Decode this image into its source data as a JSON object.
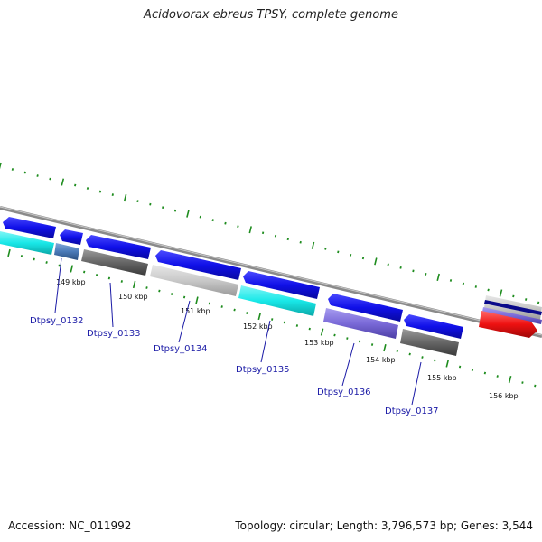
{
  "title": "Acidovorax ebreus TPSY, complete genome",
  "footer": {
    "accession": "Accession: NC_011992",
    "summary": "Topology: circular; Length: 3,796,573 bp; Genes: 3,544"
  },
  "scale": {
    "tick_labels": [
      "149 kbp",
      "150 kbp",
      "151 kbp",
      "152 kbp",
      "153 kbp",
      "154 kbp",
      "155 kbp",
      "156 kbp"
    ]
  },
  "genes": {
    "labels": [
      "Dtpsy_0132",
      "Dtpsy_0133",
      "Dtpsy_0134",
      "Dtpsy_0135",
      "Dtpsy_0136",
      "Dtpsy_0137"
    ]
  },
  "colors": {
    "cds": "#1010e8",
    "backbone": "#8a8a8a",
    "tick": "#1e8c1e",
    "label": "#1a1aa6",
    "cyan": "#19e8e8",
    "grey_dark": "#666666",
    "grey_light": "#c8c8c8",
    "purple": "#7a6ad8",
    "steel": "#4a7ab8",
    "red": "#ee1111"
  }
}
